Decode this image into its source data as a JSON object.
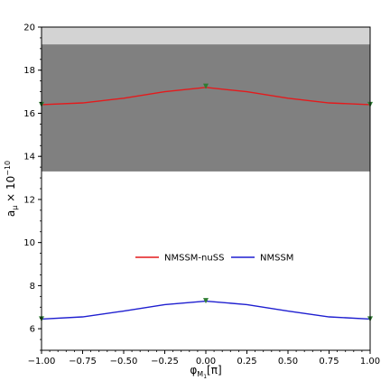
{
  "chart_data": {
    "type": "line",
    "xlabel": "φ_{M1}[π]",
    "ylabel": "a_μ × 10^{−10}",
    "xlim": [
      -1.0,
      1.0
    ],
    "ylim": [
      5.0,
      20.0
    ],
    "x_ticks": [
      -1.0,
      -0.75,
      -0.5,
      -0.25,
      0.0,
      0.25,
      0.5,
      0.75,
      1.0
    ],
    "x_tick_labels": [
      "−1.00",
      "−0.75",
      "−0.50",
      "−0.25",
      "0.00",
      "0.25",
      "0.50",
      "0.75",
      "1.00"
    ],
    "y_ticks": [
      6,
      8,
      10,
      12,
      14,
      16,
      18,
      20
    ],
    "y_tick_labels": [
      "6",
      "8",
      "10",
      "12",
      "14",
      "16",
      "18",
      "20"
    ],
    "grid": false,
    "legend_position": "center",
    "bands": [
      {
        "y": [
          13.3,
          19.2
        ],
        "color": "#808080"
      },
      {
        "y": [
          19.2,
          20.0
        ],
        "color": "#d3d3d3"
      }
    ],
    "series": [
      {
        "name": "NMSSM-nuSS",
        "color": "#e41a1c",
        "x": [
          -1.0,
          -0.75,
          -0.5,
          -0.25,
          0.0,
          0.25,
          0.5,
          0.75,
          1.0
        ],
        "y": [
          16.4,
          16.48,
          16.7,
          17.0,
          17.2,
          17.0,
          16.7,
          16.48,
          16.4
        ],
        "markers": [
          {
            "x": -1.0,
            "y": 16.4
          },
          {
            "x": 0.0,
            "y": 17.25
          },
          {
            "x": 1.0,
            "y": 16.4
          }
        ]
      },
      {
        "name": "NMSSM",
        "color": "#1f1fd0",
        "x": [
          -1.0,
          -0.75,
          -0.5,
          -0.25,
          0.0,
          0.25,
          0.5,
          0.75,
          1.0
        ],
        "y": [
          6.45,
          6.55,
          6.82,
          7.12,
          7.28,
          7.12,
          6.82,
          6.55,
          6.45
        ],
        "markers": [
          {
            "x": -1.0,
            "y": 6.45
          },
          {
            "x": 0.0,
            "y": 7.3
          },
          {
            "x": 1.0,
            "y": 6.45
          }
        ]
      }
    ],
    "marker_color": "#2e7d32"
  }
}
